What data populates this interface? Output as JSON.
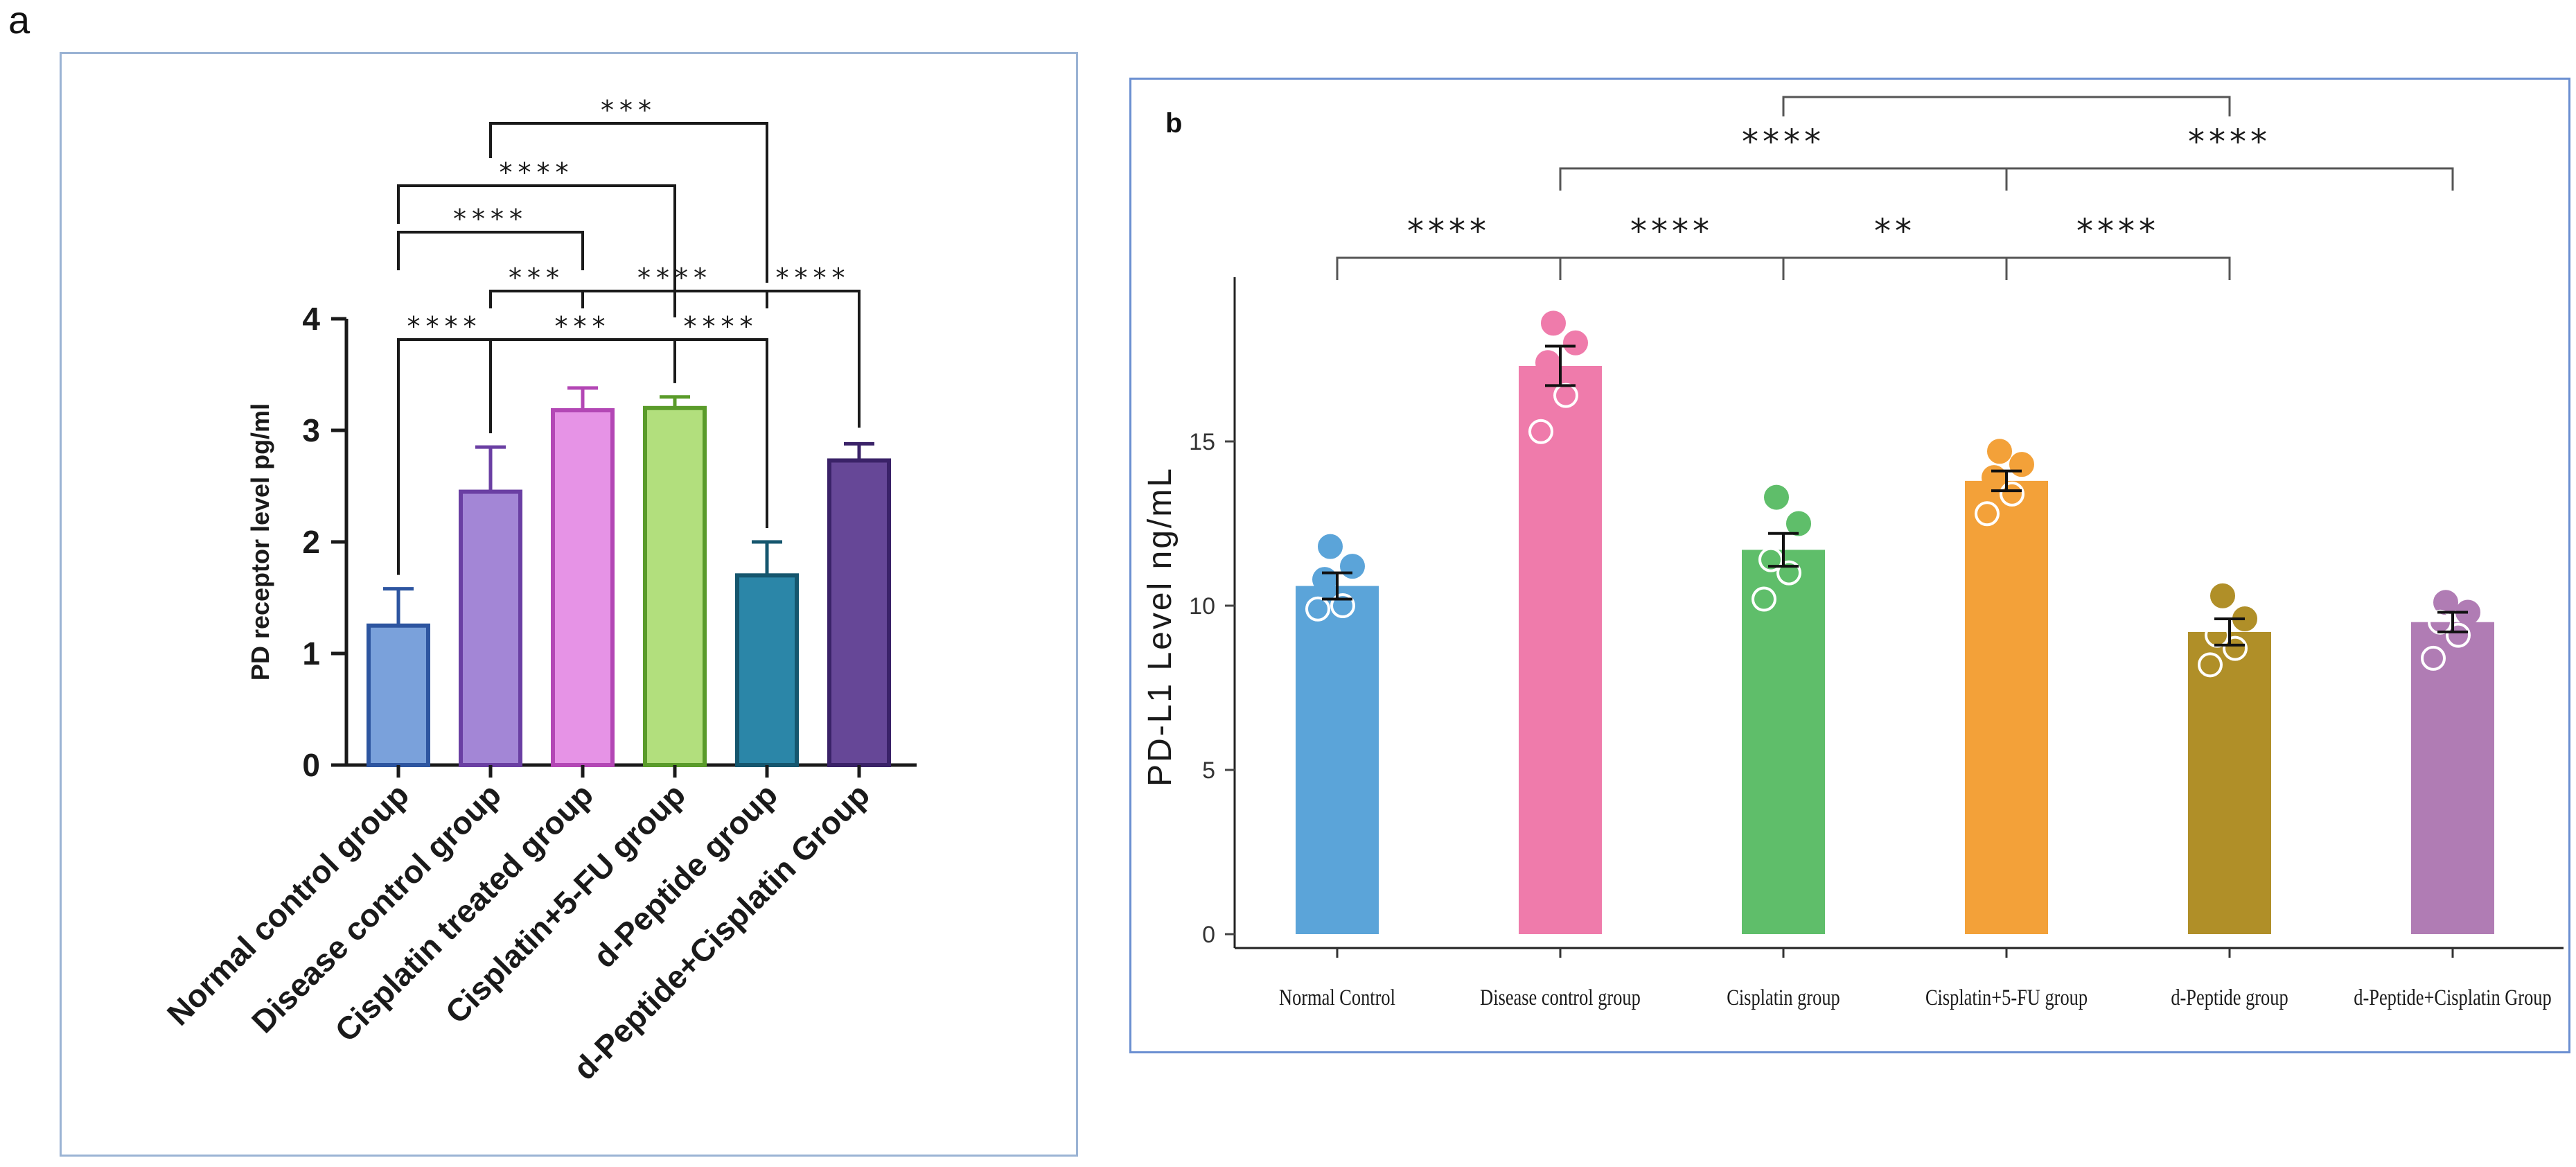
{
  "panels": {
    "a": "a",
    "b": "b"
  },
  "chart_data": [
    {
      "type": "bar",
      "panel": "a",
      "title": "",
      "ylabel": "PD receptor level pg/ml",
      "xlabel": "",
      "ylim": [
        0,
        4
      ],
      "yticks": [
        0,
        1,
        2,
        3,
        4
      ],
      "categories": [
        "Normal control group",
        "Disease control group",
        "Cisplatin treated group",
        "Cisplatin+5-FU group",
        "d-Peptide group",
        "d-Peptide+Cisplatin Group"
      ],
      "values": [
        1.25,
        2.45,
        3.18,
        3.2,
        1.7,
        2.73
      ],
      "errors": [
        0.33,
        0.4,
        0.2,
        0.1,
        0.3,
        0.15
      ],
      "colors": [
        "#7aa1db",
        "#a386d6",
        "#e693e6",
        "#b2df7d",
        "#2b86a8",
        "#664797"
      ],
      "edge_colors": [
        "#2d55a0",
        "#6a3fa3",
        "#b347b5",
        "#5a9b2a",
        "#15566e",
        "#3a2268"
      ],
      "significance": [
        {
          "i": 0,
          "j": 1,
          "label": "****"
        },
        {
          "i": 1,
          "j": 3,
          "label": "***"
        },
        {
          "i": 3,
          "j": 4,
          "label": "****"
        },
        {
          "i": 1,
          "j": 2,
          "label": "***"
        },
        {
          "i": 2,
          "j": 4,
          "label": "****"
        },
        {
          "i": 4,
          "j": 5,
          "label": "****"
        },
        {
          "i": 0,
          "j": 2,
          "label": "****"
        },
        {
          "i": 0,
          "j": 3,
          "label": "****"
        },
        {
          "i": 1,
          "j": 4,
          "label": "***"
        }
      ]
    },
    {
      "type": "bar",
      "panel": "b",
      "title": "",
      "ylabel": "PD-L1 Level ng/mL",
      "xlabel": "",
      "ylim": [
        0,
        20
      ],
      "yticks": [
        0,
        5,
        10,
        15
      ],
      "categories": [
        "Normal Control",
        "Disease control group",
        "Cisplatin group",
        "Cisplatin+5-FU group",
        "d-Peptide group",
        "d-Peptide+Cisplatin Group"
      ],
      "values": [
        10.6,
        17.3,
        11.7,
        13.8,
        9.2,
        9.5
      ],
      "errors": [
        0.4,
        0.6,
        0.5,
        0.3,
        0.4,
        0.3
      ],
      "colors": [
        "#5ba4d9",
        "#ef7bab",
        "#5fbe6a",
        "#f3a139",
        "#b08f28",
        "#b07cb4"
      ],
      "points": [
        [
          11.8,
          11.2,
          10.8,
          10.0,
          9.9
        ],
        [
          18.6,
          18.0,
          17.4,
          16.4,
          15.3
        ],
        [
          13.3,
          12.5,
          11.4,
          11.0,
          10.2
        ],
        [
          14.7,
          14.3,
          13.9,
          13.4,
          12.8
        ],
        [
          10.3,
          9.6,
          9.1,
          8.7,
          8.2
        ],
        [
          10.1,
          9.8,
          9.5,
          9.1,
          8.4
        ]
      ],
      "significance": [
        {
          "i": 0,
          "j": 1,
          "label": "****"
        },
        {
          "i": 1,
          "j": 2,
          "label": "****"
        },
        {
          "i": 2,
          "j": 3,
          "label": "**"
        },
        {
          "i": 3,
          "j": 4,
          "label": "****"
        },
        {
          "i": 1,
          "j": 3,
          "label": "****"
        },
        {
          "i": 3,
          "j": 5,
          "label": "****"
        },
        {
          "i": 2,
          "j": 4,
          "label": ""
        }
      ]
    }
  ]
}
